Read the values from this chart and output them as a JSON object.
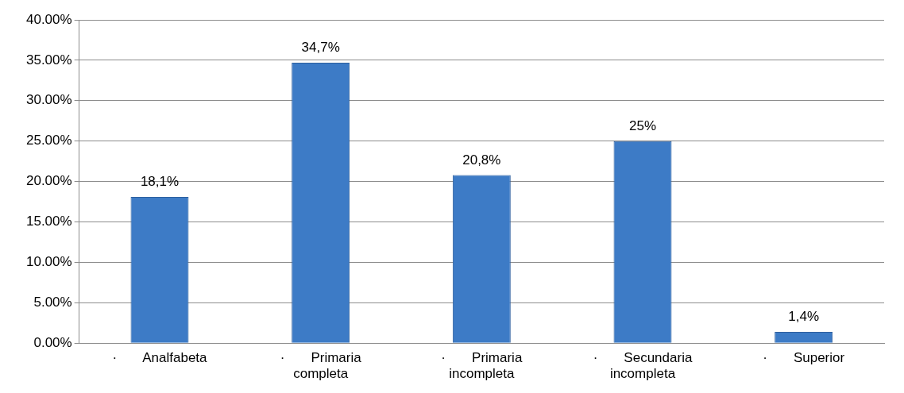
{
  "chart_data": {
    "type": "bar",
    "categories": [
      "· Analfabeta",
      "· Primaria completa",
      "· Primaria incompleta",
      "· Secundaria incompleta",
      "· Superior"
    ],
    "values": [
      18.1,
      34.7,
      20.8,
      25,
      1.4
    ],
    "value_labels": [
      "18,1%",
      "34,7%",
      "20,8%",
      "25%",
      "1,4%"
    ],
    "color": "#3d7bc6",
    "ylim": [
      0,
      40
    ],
    "yticks": [
      {
        "value": 0,
        "label": "0.00%"
      },
      {
        "value": 5,
        "label": "5.00%"
      },
      {
        "value": 10,
        "label": "10.00%"
      },
      {
        "value": 15,
        "label": "15.00%"
      },
      {
        "value": 20,
        "label": "20.00%"
      },
      {
        "value": 25,
        "label": "25.00%"
      },
      {
        "value": 30,
        "label": "30.00%"
      },
      {
        "value": 35,
        "label": "35.00%"
      },
      {
        "value": 40,
        "label": "40.00%"
      }
    ],
    "grid": "y"
  }
}
